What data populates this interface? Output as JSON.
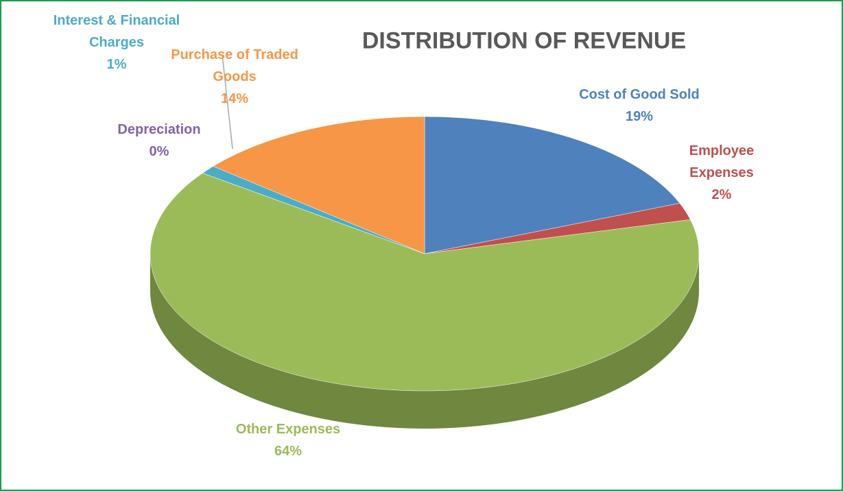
{
  "chart_data": {
    "type": "pie",
    "title": "DISTRIBUTION OF REVENUE",
    "categories": [
      "Cost of Good Sold",
      "Employee Expenses",
      "Other Expenses",
      "Depreciation",
      "Interest & Financial Charges",
      "Purchase of Traded Goods"
    ],
    "values": [
      19,
      2,
      64,
      0,
      1,
      14
    ],
    "value_labels": [
      "19%",
      "2%",
      "64%",
      "0%",
      "1%",
      "14%"
    ],
    "colors": [
      "#4f81bd",
      "#c0504d",
      "#9bbb59",
      "#8064a2",
      "#4bacc6",
      "#f79646"
    ]
  }
}
